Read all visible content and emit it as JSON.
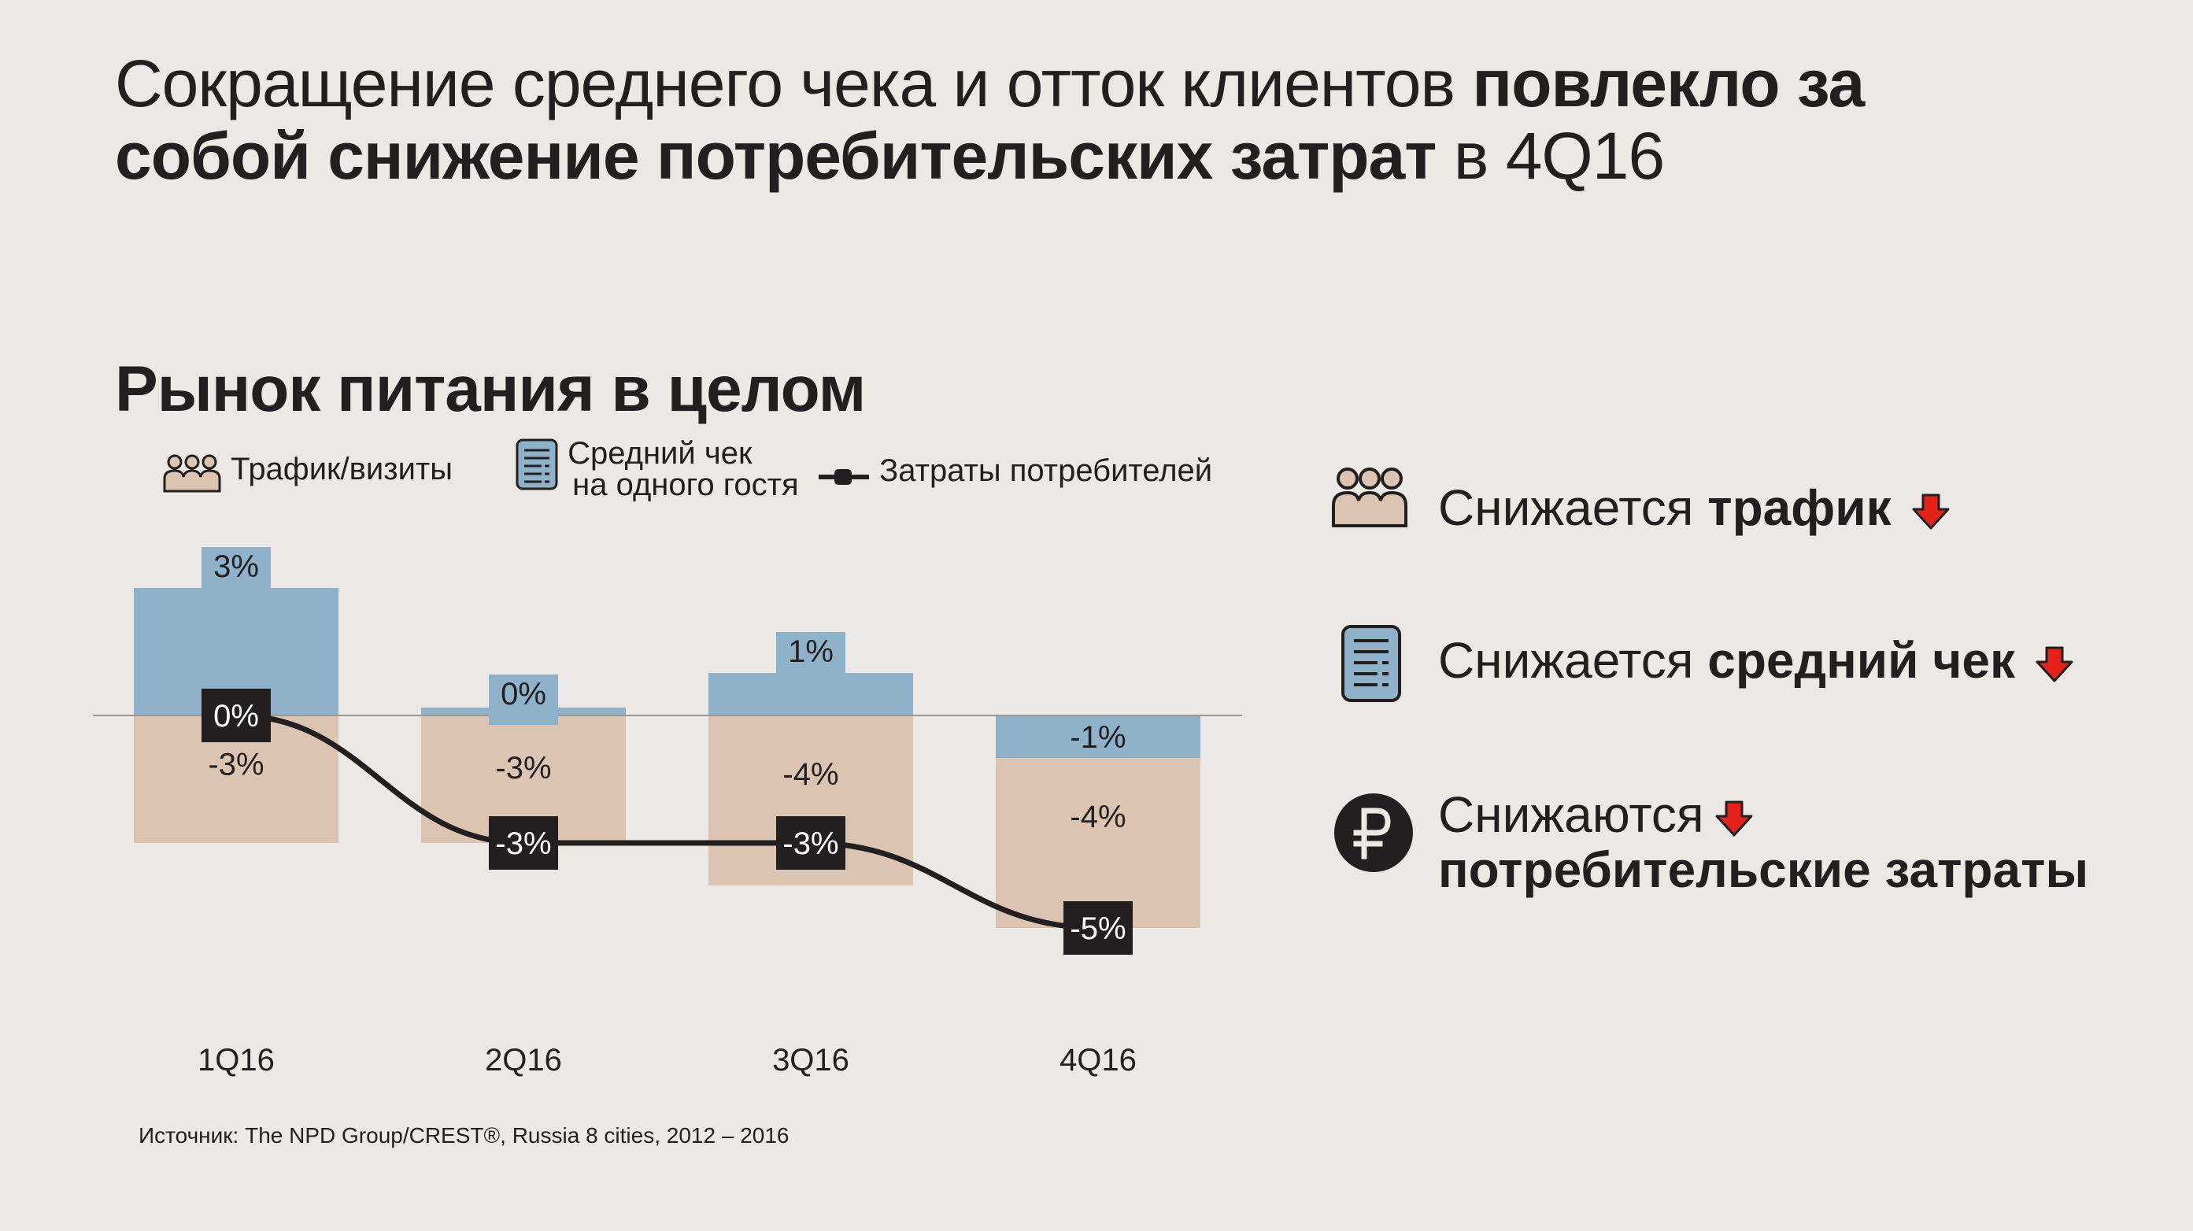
{
  "title": {
    "line1_normal": "Сокращение среднего чека и отток клиентов ",
    "line1_bold": "повлекло за",
    "line2_bold": "собой снижение потребительских затрат",
    "line2_normal": " в 4Q16"
  },
  "subtitle": "Рынок питания в целом",
  "legend": {
    "traffic": "Трафик/визиты",
    "check_line1": "Средний чек",
    "check_line2": "на одного гостя",
    "spend": "Затраты потребителей"
  },
  "colors": {
    "background": "#ece8e5",
    "avg_check_bar": "#8fb1c9",
    "traffic_bar": "#dcc4b2",
    "spend_line": "#231f20",
    "arrow": "#e3231b"
  },
  "icons": {
    "traffic": "people-icon",
    "check": "receipt-icon",
    "spend": "ruble-icon",
    "down": "arrow-down-icon"
  },
  "chart_data": {
    "type": "bar",
    "categories": [
      "1Q16",
      "2Q16",
      "3Q16",
      "4Q16"
    ],
    "series": [
      {
        "name": "Средний чек на одного гостя",
        "values": [
          3,
          0,
          1,
          -1
        ],
        "labels": [
          "3%",
          "0%",
          "1%",
          "-1%"
        ]
      },
      {
        "name": "Трафик/визиты",
        "values": [
          -3,
          -3,
          -4,
          -4
        ],
        "labels": [
          "-3%",
          "-3%",
          "-4%",
          "-4%"
        ]
      },
      {
        "name": "Затраты потребителей",
        "type": "line",
        "values": [
          0,
          -3,
          -3,
          -5
        ],
        "labels": [
          "0%",
          "-3%",
          "-3%",
          "-5%"
        ]
      }
    ]
  },
  "side": {
    "row1_normal": "Снижается ",
    "row1_bold": "трафик",
    "row2_normal": "Снижается ",
    "row2_bold": "средний чек",
    "row3_normal": "Снижаются",
    "row3_bold": "потребительские затраты"
  },
  "source": "Источник: The NPD Group/CREST®, Russia 8 cities, 2012 – 2016"
}
